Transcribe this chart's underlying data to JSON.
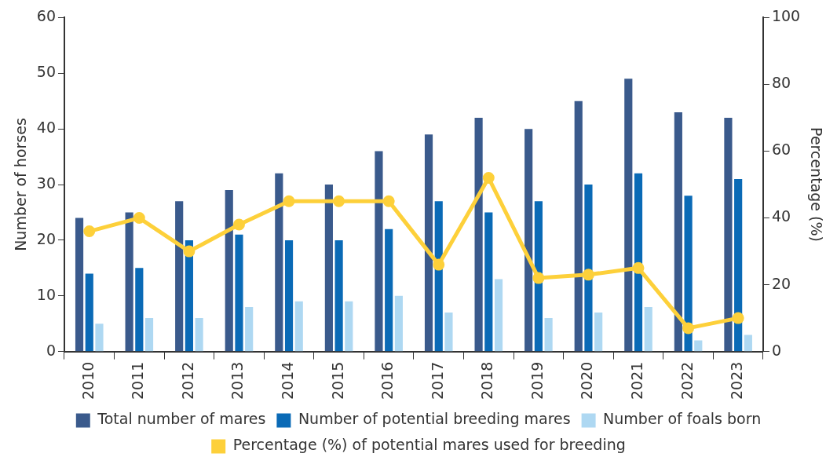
{
  "chart_data": {
    "type": "bar",
    "ylabel": "Number of horses",
    "y2label": "Percentage (%)",
    "categories": [
      "2010",
      "2011",
      "2012",
      "2013",
      "2014",
      "2015",
      "2016",
      "2017",
      "2018",
      "2019",
      "2020",
      "2021",
      "2022",
      "2023"
    ],
    "series": [
      {
        "name": "Total number of mares",
        "color": "#3a5a8c",
        "values": [
          24,
          25,
          27,
          29,
          32,
          30,
          36,
          39,
          42,
          40,
          45,
          49,
          43,
          42
        ]
      },
      {
        "name": "Number of potential breeding mares",
        "color": "#0a6ab6",
        "values": [
          14,
          15,
          20,
          21,
          20,
          20,
          22,
          27,
          25,
          27,
          30,
          32,
          28,
          31
        ]
      },
      {
        "name": "Number of foals born",
        "color": "#aed8f2",
        "values": [
          5,
          6,
          6,
          8,
          9,
          9,
          10,
          7,
          13,
          6,
          7,
          8,
          2,
          3
        ]
      },
      {
        "name": "Percentage (%) of potential mares used for breeding",
        "color": "#fdd03a",
        "type": "line",
        "axis": "y2",
        "marker": "circle",
        "values": [
          36,
          40,
          30,
          38,
          45,
          45,
          45,
          26,
          52,
          22,
          23,
          25,
          7,
          10
        ]
      }
    ],
    "ylim": [
      0,
      60
    ],
    "yticks": [
      0,
      10,
      20,
      30,
      40,
      50,
      60
    ],
    "y2lim": [
      0,
      100
    ],
    "y2ticks": [
      0,
      20,
      40,
      60,
      80,
      100
    ],
    "grid": false,
    "legend": "bottom"
  }
}
